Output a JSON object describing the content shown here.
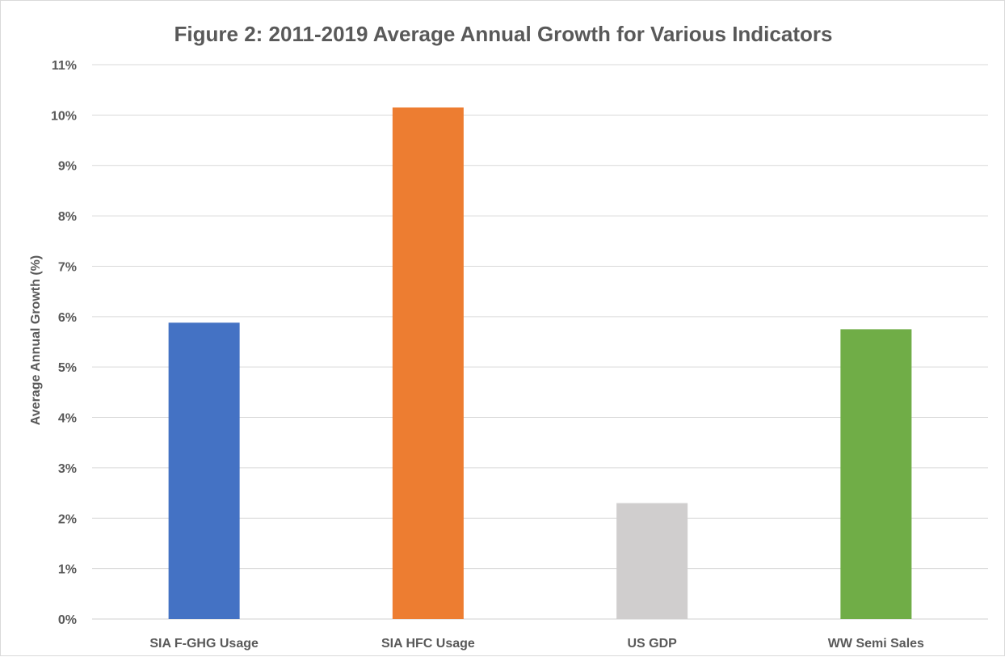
{
  "chart_data": {
    "type": "bar",
    "title": "Figure 2: 2011-2019 Average Annual Growth for Various Indicators",
    "xlabel": "",
    "ylabel": "Average Annual Growth (%)",
    "categories": [
      "SIA F-GHG Usage",
      "SIA HFC Usage",
      "US GDP",
      "WW Semi Sales"
    ],
    "values": [
      5.88,
      10.15,
      2.3,
      5.75
    ],
    "bar_colors": [
      "#4472C4",
      "#ED7D31",
      "#D0CECE",
      "#70AD47"
    ],
    "ylim": [
      0,
      11
    ],
    "y_ticks": [
      0,
      1,
      2,
      3,
      4,
      5,
      6,
      7,
      8,
      9,
      10,
      11
    ],
    "y_tick_labels": [
      "0%",
      "1%",
      "2%",
      "3%",
      "4%",
      "5%",
      "6%",
      "7%",
      "8%",
      "9%",
      "10%",
      "11%"
    ],
    "grid": true,
    "legend": "none"
  }
}
